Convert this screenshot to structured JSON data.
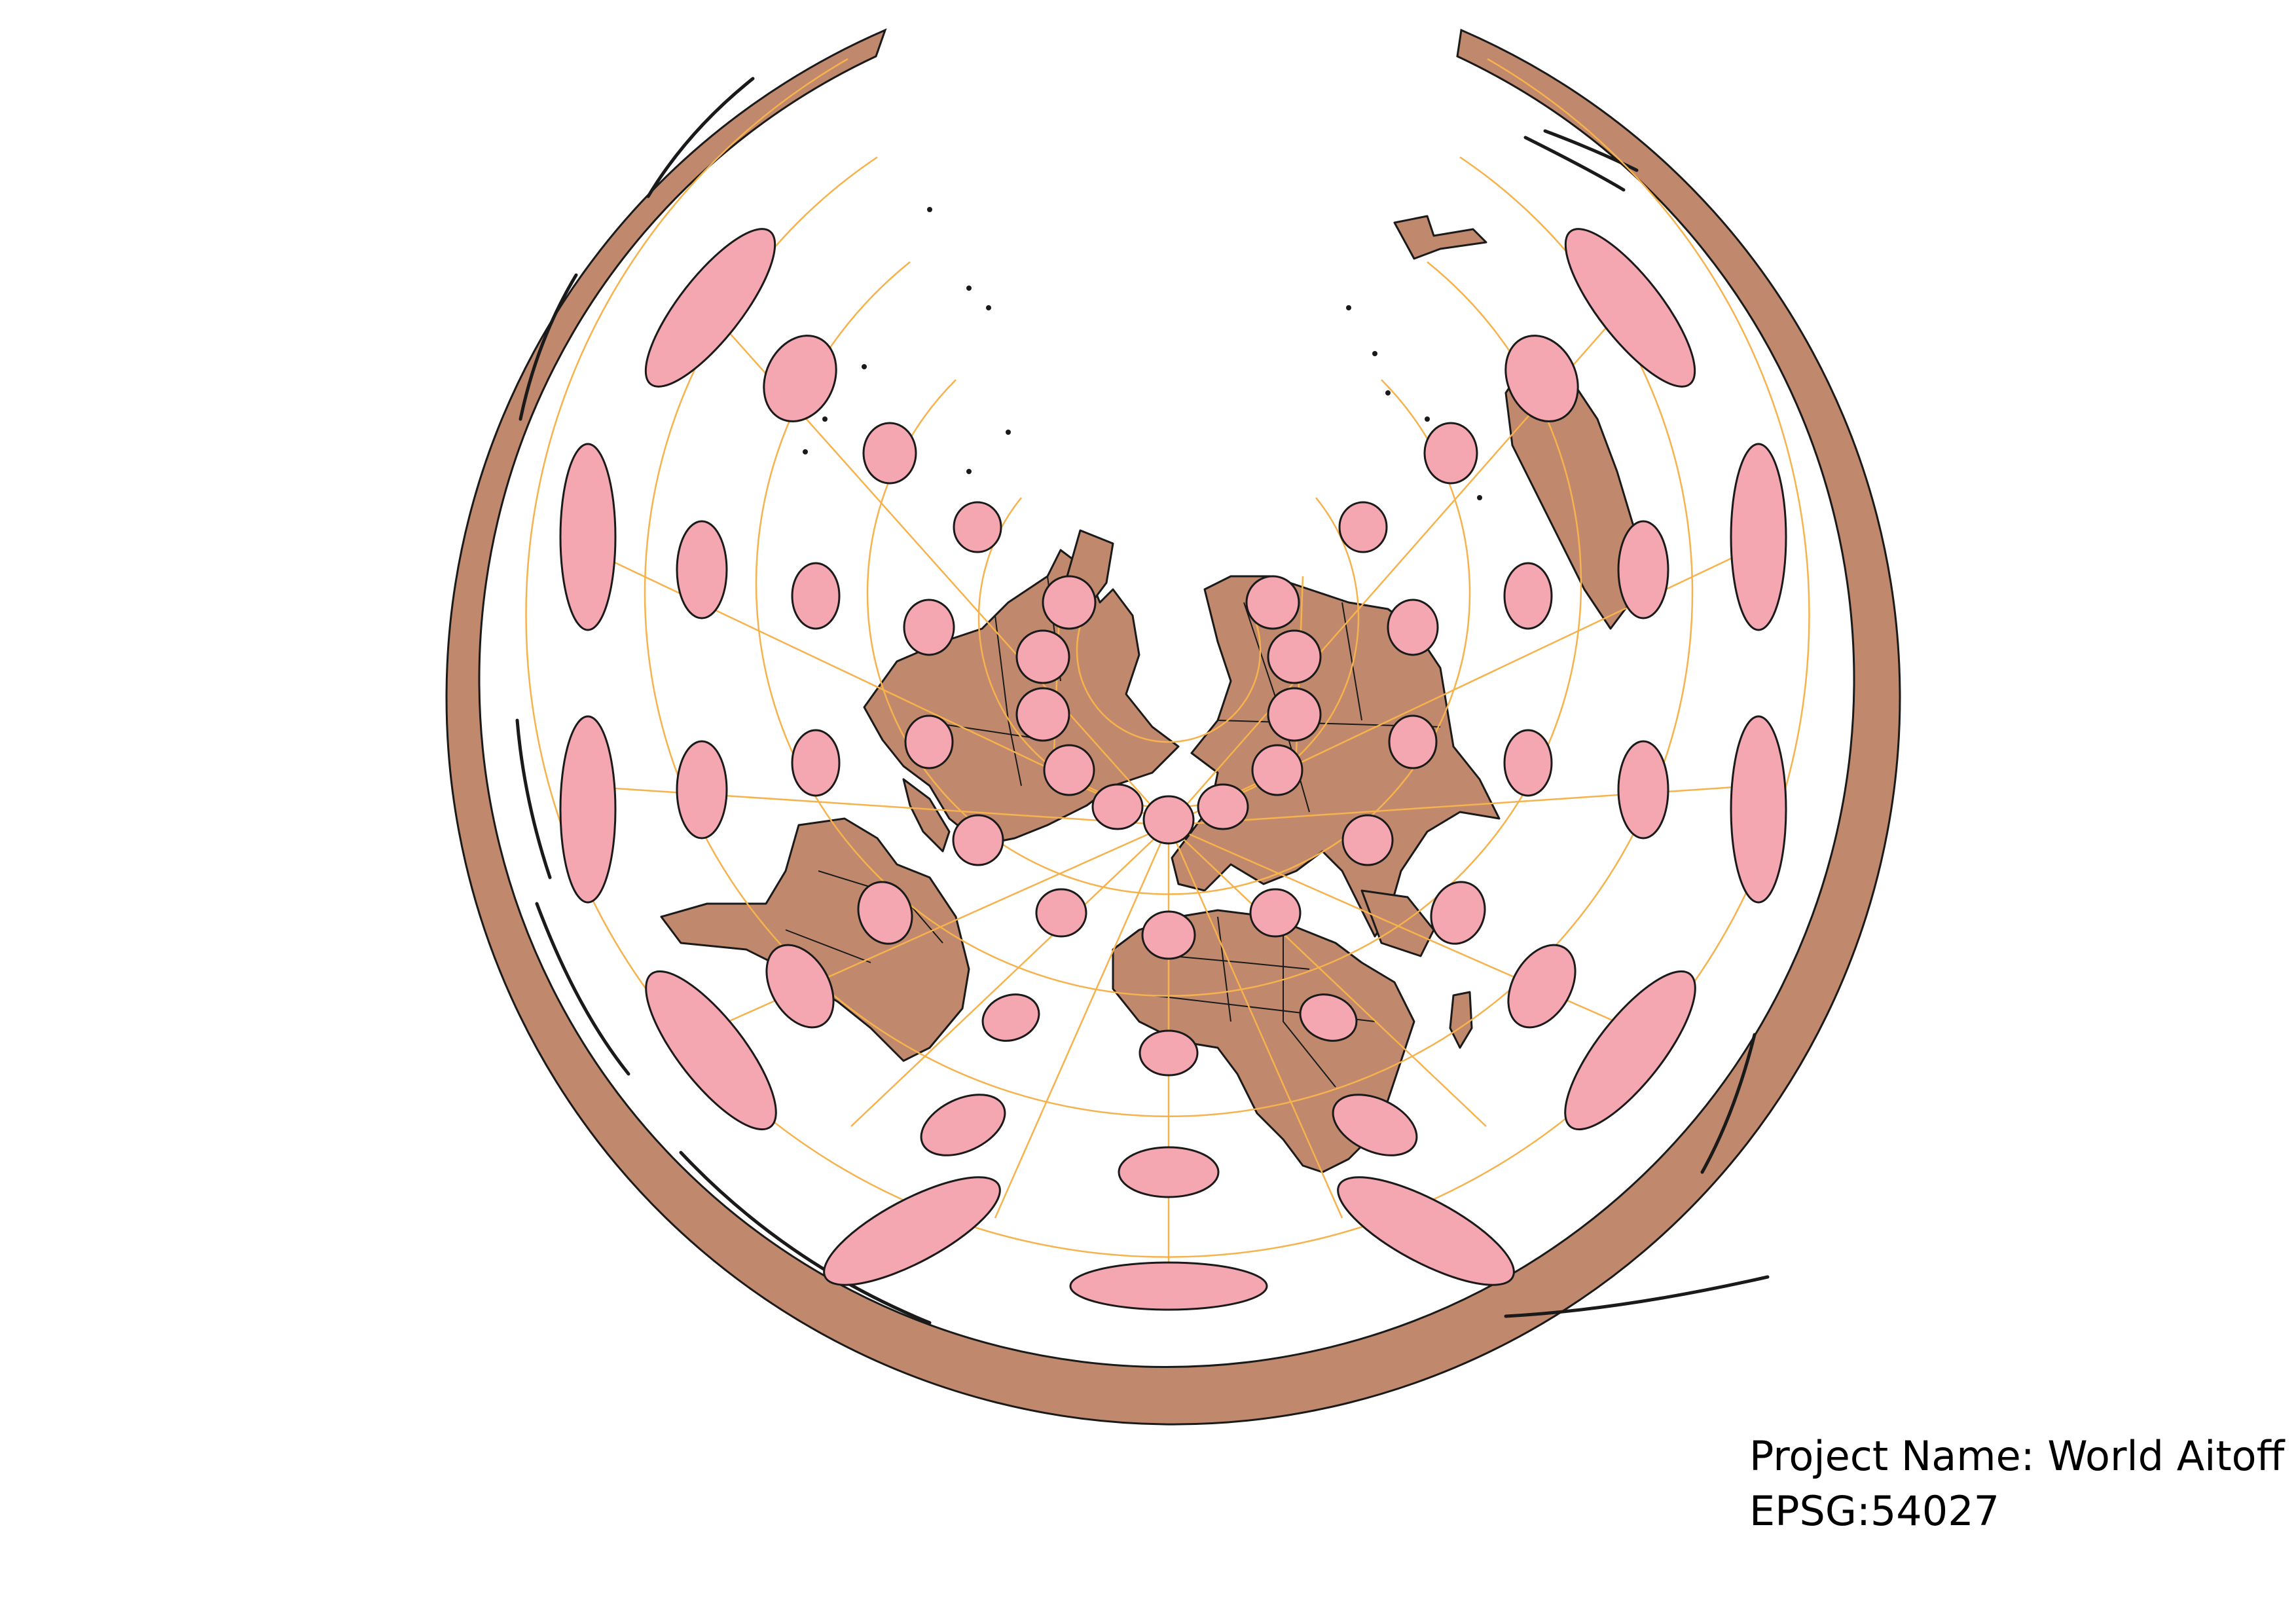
{
  "map": {
    "projection_label_line1": "Project Name: World Aitoff",
    "projection_label_line2": "EPSG:54027"
  },
  "colors": {
    "land": "#c0896e",
    "outline": "#1a1a1a",
    "graticule": "#f6b24d",
    "indicatrix": "#f4a7b0",
    "background": "#ffffff"
  },
  "layers": [
    "outer-ring",
    "continents",
    "country-borders",
    "graticule",
    "tissot-indicatrix",
    "projection-label"
  ]
}
